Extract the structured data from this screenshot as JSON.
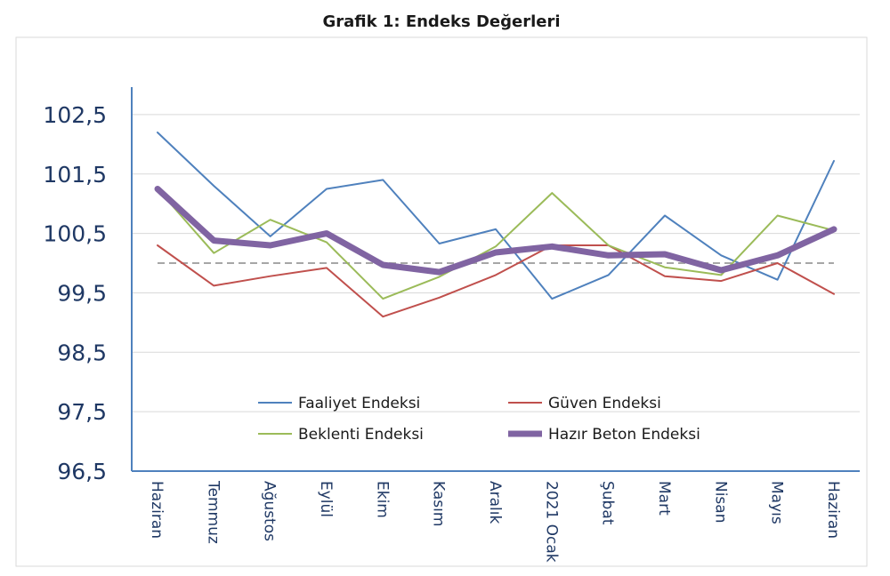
{
  "chart_data": {
    "type": "line",
    "title": "Grafik 1: Endeks Değerleri",
    "xlabel": "",
    "ylabel": "",
    "categories": [
      "Haziran",
      "Temmuz",
      "Ağustos",
      "Eylül",
      "Ekim",
      "Kasım",
      "Aralık",
      "2021 Ocak",
      "Şubat",
      "Mart",
      "Nisan",
      "Mayıs",
      "Haziran"
    ],
    "y_ticks": [
      "102,5",
      "101,5",
      "100,5",
      "99,5",
      "98,5",
      "97,5",
      "96,5"
    ],
    "ylim": [
      96.5,
      103.0
    ],
    "reference_line": 100,
    "grid": true,
    "legend_position": "center",
    "series": [
      {
        "name": "Faaliyet Endeksi",
        "color": "#4f81bd",
        "values": [
          102.2,
          101.3,
          100.45,
          101.25,
          101.4,
          100.33,
          100.57,
          99.4,
          99.8,
          100.8,
          100.13,
          99.72,
          101.72
        ]
      },
      {
        "name": "Güven Endeksi",
        "color": "#c0504d",
        "values": [
          100.3,
          99.62,
          99.78,
          99.92,
          99.1,
          99.42,
          99.8,
          100.3,
          100.3,
          99.78,
          99.7,
          100.0,
          99.48
        ]
      },
      {
        "name": "Beklenti Endeksi",
        "color": "#9bbb59",
        "values": [
          101.25,
          100.17,
          100.73,
          100.35,
          99.4,
          99.77,
          100.28,
          101.18,
          100.3,
          99.93,
          99.8,
          100.8,
          100.55
        ]
      },
      {
        "name": "Hazır Beton Endeksi",
        "color": "#8064a2",
        "values": [
          101.25,
          100.38,
          100.3,
          100.5,
          99.97,
          99.85,
          100.18,
          100.28,
          100.13,
          100.15,
          99.88,
          100.13,
          100.57
        ]
      }
    ]
  }
}
